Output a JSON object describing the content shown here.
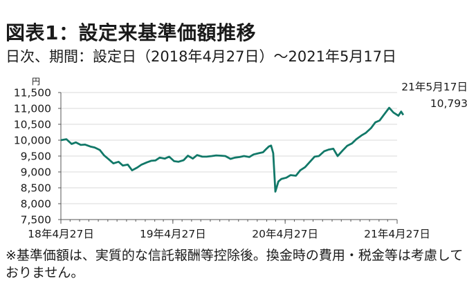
{
  "title": "図表1：設定来基準価額推移",
  "subtitle": "日次、期間：設定日（2018年4月27日）～2021年5月17日",
  "footnote": "※基準価額は、実質的な信託報酬等控除後。換金時の費用・税金等は考慮しておりません。",
  "colors": {
    "line": "#117868",
    "axis": "#555555",
    "grid": "#d9d9d9"
  },
  "chart_data": {
    "type": "line",
    "title": "設定来基準価額推移",
    "ylabel": "円",
    "xlabel": "",
    "ylim": [
      7500,
      11500
    ],
    "yticks": [
      7500,
      8000,
      8500,
      9000,
      9500,
      10000,
      10500,
      11000,
      11500
    ],
    "ytick_labels": [
      "7,500",
      "8,000",
      "8,500",
      "9,000",
      "9,500",
      "10,000",
      "10,500",
      "11,000",
      "11,500"
    ],
    "xticks": [
      "18年4月27日",
      "19年4月27日",
      "20年4月27日",
      "21年4月27日"
    ],
    "grid": true,
    "legend": "none",
    "annotation": {
      "date_label": "21年5月17日",
      "value_label": "10,793"
    },
    "series": [
      {
        "x": [
          "2018-04-27",
          "2018-05-15",
          "2018-06-01",
          "2018-06-15",
          "2018-07-01",
          "2018-07-15",
          "2018-08-01",
          "2018-08-15",
          "2018-09-01",
          "2018-09-15",
          "2018-10-01",
          "2018-10-15",
          "2018-11-01",
          "2018-11-15",
          "2018-12-01",
          "2018-12-15",
          "2019-01-01",
          "2019-01-15",
          "2019-02-01",
          "2019-02-15",
          "2019-03-01",
          "2019-03-15",
          "2019-04-01",
          "2019-04-15",
          "2019-05-01",
          "2019-05-15",
          "2019-06-01",
          "2019-06-15",
          "2019-07-01",
          "2019-07-15",
          "2019-08-01",
          "2019-08-15",
          "2019-09-01",
          "2019-09-15",
          "2019-10-01",
          "2019-10-15",
          "2019-11-01",
          "2019-11-15",
          "2019-12-01",
          "2019-12-15",
          "2020-01-01",
          "2020-01-15",
          "2020-02-01",
          "2020-02-15",
          "2020-02-25",
          "2020-03-05",
          "2020-03-12",
          "2020-03-19",
          "2020-03-26",
          "2020-04-05",
          "2020-04-15",
          "2020-05-01",
          "2020-05-15",
          "2020-06-01",
          "2020-06-15",
          "2020-07-01",
          "2020-07-15",
          "2020-08-01",
          "2020-08-15",
          "2020-09-01",
          "2020-09-15",
          "2020-10-01",
          "2020-10-15",
          "2020-11-01",
          "2020-11-15",
          "2020-12-01",
          "2020-12-15",
          "2021-01-01",
          "2021-01-15",
          "2021-02-01",
          "2021-02-15",
          "2021-03-01",
          "2021-03-15",
          "2021-04-01",
          "2021-04-15",
          "2021-05-01",
          "2021-05-10",
          "2021-05-17"
        ],
        "values": [
          10000,
          10030,
          9880,
          9930,
          9850,
          9860,
          9800,
          9770,
          9690,
          9520,
          9390,
          9270,
          9320,
          9200,
          9230,
          9050,
          9140,
          9230,
          9300,
          9350,
          9360,
          9450,
          9420,
          9480,
          9340,
          9320,
          9370,
          9510,
          9420,
          9530,
          9480,
          9480,
          9500,
          9520,
          9510,
          9500,
          9410,
          9450,
          9470,
          9500,
          9470,
          9550,
          9590,
          9620,
          9720,
          9800,
          9830,
          9590,
          8380,
          8700,
          8780,
          8820,
          8900,
          8880,
          9050,
          9150,
          9300,
          9480,
          9500,
          9650,
          9700,
          9730,
          9500,
          9680,
          9820,
          9900,
          10030,
          10150,
          10230,
          10380,
          10560,
          10620,
          10800,
          11020,
          10870,
          10770,
          10900,
          10793
        ]
      }
    ]
  }
}
